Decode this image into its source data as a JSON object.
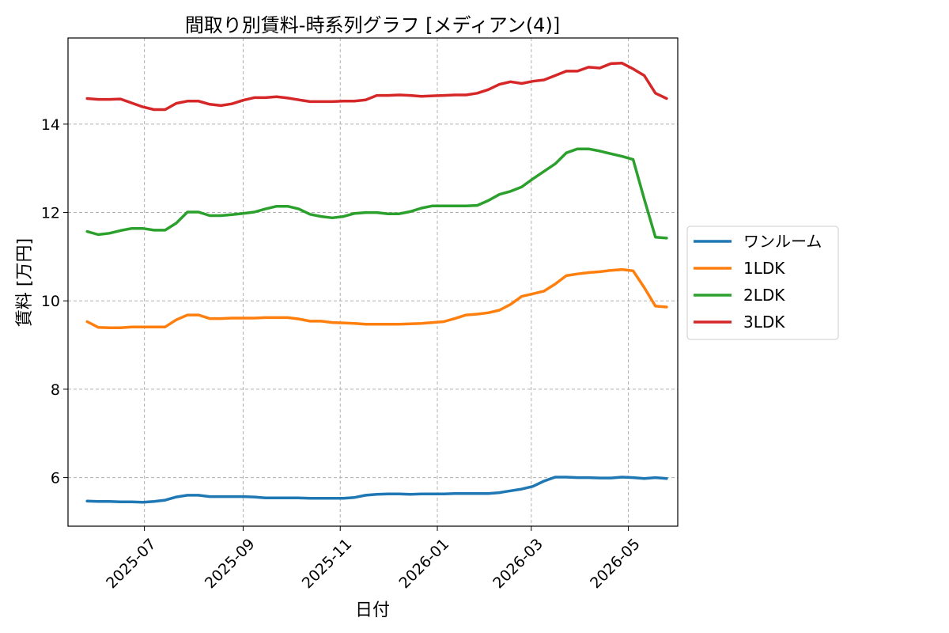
{
  "chart_data": {
    "type": "line",
    "title": "間取り別賃料-時系列グラフ [メディアン(4)]",
    "xlabel": "日付",
    "ylabel": "賃料 [万円]",
    "xlim": [
      "2025-05-14",
      "2026-06-01"
    ],
    "ylim": [
      4.9,
      15.95
    ],
    "yticks": [
      6,
      8,
      10,
      12,
      14
    ],
    "xticks": [
      "2025-07",
      "2025-09",
      "2025-11",
      "2026-01",
      "2026-03",
      "2026-05"
    ],
    "grid": true,
    "legend_position": "outside-right",
    "x": [
      "2025-05-26",
      "2025-06-02",
      "2025-06-09",
      "2025-06-16",
      "2025-06-23",
      "2025-06-30",
      "2025-07-07",
      "2025-07-14",
      "2025-07-21",
      "2025-07-28",
      "2025-08-04",
      "2025-08-11",
      "2025-08-18",
      "2025-08-25",
      "2025-09-01",
      "2025-09-08",
      "2025-09-15",
      "2025-09-22",
      "2025-09-29",
      "2025-10-06",
      "2025-10-13",
      "2025-10-20",
      "2025-10-27",
      "2025-11-03",
      "2025-11-10",
      "2025-11-17",
      "2025-11-24",
      "2025-12-01",
      "2025-12-08",
      "2025-12-15",
      "2025-12-22",
      "2025-12-29",
      "2026-01-05",
      "2026-01-12",
      "2026-01-19",
      "2026-01-26",
      "2026-02-02",
      "2026-02-09",
      "2026-02-16",
      "2026-02-23",
      "2026-03-02",
      "2026-03-09",
      "2026-03-16",
      "2026-03-23",
      "2026-03-30",
      "2026-04-06",
      "2026-04-13",
      "2026-04-20",
      "2026-04-27",
      "2026-05-04",
      "2026-05-11",
      "2026-05-18",
      "2026-05-25"
    ],
    "series": [
      {
        "name": "ワンルーム",
        "color": "#1f77b4",
        "values": [
          5.47,
          5.46,
          5.46,
          5.45,
          5.45,
          5.44,
          5.46,
          5.49,
          5.56,
          5.6,
          5.6,
          5.57,
          5.57,
          5.57,
          5.57,
          5.56,
          5.54,
          5.54,
          5.54,
          5.54,
          5.53,
          5.53,
          5.53,
          5.53,
          5.55,
          5.6,
          5.62,
          5.63,
          5.63,
          5.62,
          5.63,
          5.63,
          5.63,
          5.64,
          5.64,
          5.64,
          5.64,
          5.66,
          5.7,
          5.74,
          5.8,
          5.92,
          6.01,
          6.01,
          6.0,
          6.0,
          5.99,
          5.99,
          6.01,
          6.0,
          5.98,
          6.0,
          5.98
        ]
      },
      {
        "name": "1LDK",
        "color": "#ff7f0e",
        "values": [
          9.53,
          9.4,
          9.39,
          9.39,
          9.41,
          9.41,
          9.41,
          9.41,
          9.57,
          9.68,
          9.68,
          9.6,
          9.6,
          9.61,
          9.61,
          9.61,
          9.62,
          9.62,
          9.62,
          9.59,
          9.54,
          9.54,
          9.51,
          9.5,
          9.49,
          9.47,
          9.47,
          9.47,
          9.47,
          9.48,
          9.49,
          9.51,
          9.53,
          9.6,
          9.68,
          9.7,
          9.73,
          9.79,
          9.92,
          10.1,
          10.16,
          10.22,
          10.38,
          10.57,
          10.61,
          10.64,
          10.66,
          10.69,
          10.71,
          10.68,
          10.3,
          9.88,
          9.86
        ]
      },
      {
        "name": "2LDK",
        "color": "#2ca02c",
        "values": [
          11.57,
          11.5,
          11.53,
          11.59,
          11.64,
          11.64,
          11.6,
          11.6,
          11.76,
          12.01,
          12.01,
          11.93,
          11.93,
          11.95,
          11.98,
          12.01,
          12.08,
          12.14,
          12.14,
          12.08,
          11.96,
          11.91,
          11.88,
          11.91,
          11.98,
          12.0,
          12.0,
          11.97,
          11.97,
          12.02,
          12.1,
          12.15,
          12.15,
          12.15,
          12.15,
          12.16,
          12.27,
          12.41,
          12.48,
          12.58,
          12.76,
          12.93,
          13.1,
          13.35,
          13.44,
          13.44,
          13.39,
          13.33,
          13.27,
          13.2,
          12.3,
          11.44,
          11.42
        ]
      },
      {
        "name": "3LDK",
        "color": "#d62728",
        "values": [
          14.58,
          14.56,
          14.56,
          14.57,
          14.48,
          14.39,
          14.33,
          14.33,
          14.47,
          14.52,
          14.52,
          14.45,
          14.42,
          14.46,
          14.54,
          14.6,
          14.6,
          14.62,
          14.59,
          14.55,
          14.51,
          14.51,
          14.51,
          14.52,
          14.52,
          14.55,
          14.65,
          14.65,
          14.66,
          14.65,
          14.63,
          14.64,
          14.65,
          14.66,
          14.66,
          14.7,
          14.78,
          14.9,
          14.96,
          14.92,
          14.97,
          15.0,
          15.1,
          15.2,
          15.2,
          15.29,
          15.27,
          15.37,
          15.38,
          15.25,
          15.1,
          14.7,
          14.58
        ]
      }
    ]
  }
}
